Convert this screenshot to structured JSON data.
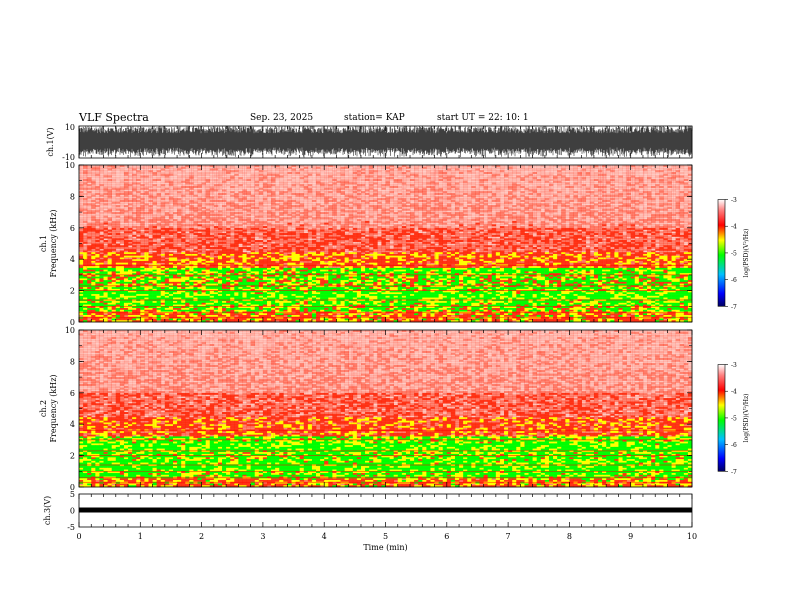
{
  "header": {
    "title": "VLF Spectra",
    "date": "Sep. 23, 2025",
    "station": "station= KAP",
    "start": "start  UT  =   22: 10: 1"
  },
  "colors": {
    "spec_low": "#00ff00",
    "spec_mid": "#ffff00",
    "spec_high": "#ff2000",
    "spec_white": "#ffffff"
  },
  "chart_data": [
    {
      "type": "line",
      "id": "ch1_waveform",
      "ylabel": "ch.1(V)",
      "ylim": [
        -10,
        10
      ],
      "yticks": [
        "10",
        "-10"
      ],
      "xlim": [
        0,
        10
      ]
    },
    {
      "type": "heatmap",
      "id": "ch1_spectrogram",
      "ylabel_top": "ch.1",
      "ylabel": "Frequency (kHz)",
      "ylim": [
        0,
        10
      ],
      "yticks": [
        "0",
        "2",
        "4",
        "6",
        "8",
        "10"
      ],
      "xlim": [
        0,
        10
      ],
      "colorbar": {
        "label": "log(PSD)(V²/Hz)",
        "ticks": [
          "-3",
          "-4",
          "-5",
          "-6",
          "-7"
        ],
        "range": [
          -7,
          -3
        ]
      }
    },
    {
      "type": "heatmap",
      "id": "ch2_spectrogram",
      "ylabel_top": "ch.2",
      "ylabel": "Frequency (kHz)",
      "ylim": [
        0,
        10
      ],
      "yticks": [
        "0",
        "2",
        "4",
        "6",
        "8",
        "10"
      ],
      "xlim": [
        0,
        10
      ],
      "colorbar": {
        "label": "log(PSD)(V²/Hz)",
        "ticks": [
          "-3",
          "-4",
          "-5",
          "-6",
          "-7"
        ],
        "range": [
          -7,
          -3
        ]
      }
    },
    {
      "type": "line",
      "id": "ch3_waveform",
      "ylabel": "ch.3(V)",
      "ylim": [
        -5,
        5
      ],
      "yticks": [
        "5",
        "0",
        "-5"
      ],
      "xlim": [
        0,
        10
      ],
      "xlabel": "Time (min)",
      "xticks": [
        "0",
        "1",
        "2",
        "3",
        "4",
        "5",
        "6",
        "7",
        "8",
        "9",
        "10"
      ]
    }
  ]
}
